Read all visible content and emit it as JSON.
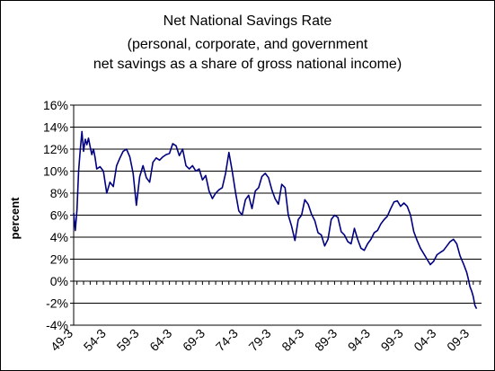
{
  "chart_data": {
    "type": "line",
    "title_lines": [
      "Net National Savings Rate",
      "(personal, corporate, and government",
      "net savings as a share of gross national income)"
    ],
    "ylabel": "percent",
    "xlabel": "",
    "ylim": [
      -4,
      16
    ],
    "yticks": [
      "-4%",
      "-2%",
      "0%",
      "2%",
      "4%",
      "6%",
      "8%",
      "10%",
      "12%",
      "14%",
      "16%"
    ],
    "ytick_values": [
      -4,
      -2,
      0,
      2,
      4,
      6,
      8,
      10,
      12,
      14,
      16
    ],
    "xticks": [
      "49-3",
      "54-3",
      "59-3",
      "64-3",
      "69-3",
      "74-3",
      "79-3",
      "84-3",
      "89-3",
      "94-3",
      "99-3",
      "04-3",
      "09-3"
    ],
    "xtick_years": [
      1949.5,
      1954.5,
      1959.5,
      1964.5,
      1969.5,
      1974.5,
      1979.5,
      1984.5,
      1989.5,
      1994.5,
      1999.5,
      2004.5,
      2009.5
    ],
    "xlim": [
      1949.5,
      2011.25
    ],
    "grid": true,
    "line_color": "#000080",
    "series": [
      {
        "name": "",
        "x": [
          1949.5,
          1949.75,
          1950.0,
          1950.25,
          1950.5,
          1950.75,
          1951.0,
          1951.25,
          1951.5,
          1951.75,
          1952.0,
          1952.25,
          1952.5,
          1952.75,
          1953.0,
          1953.5,
          1954.0,
          1954.5,
          1955.0,
          1955.5,
          1956.0,
          1956.5,
          1957.0,
          1957.5,
          1958.0,
          1958.5,
          1959.0,
          1959.5,
          1960.0,
          1960.5,
          1961.0,
          1961.5,
          1962.0,
          1962.5,
          1963.0,
          1963.5,
          1964.0,
          1964.5,
          1965.0,
          1965.5,
          1966.0,
          1966.5,
          1967.0,
          1967.5,
          1968.0,
          1968.5,
          1969.0,
          1969.5,
          1970.0,
          1970.5,
          1971.0,
          1971.5,
          1972.0,
          1972.5,
          1973.0,
          1973.5,
          1974.0,
          1974.5,
          1975.0,
          1975.5,
          1976.0,
          1976.5,
          1977.0,
          1977.5,
          1978.0,
          1978.5,
          1979.0,
          1979.5,
          1980.0,
          1980.5,
          1981.0,
          1981.5,
          1982.0,
          1982.5,
          1983.0,
          1983.5,
          1984.0,
          1984.5,
          1985.0,
          1985.5,
          1986.0,
          1986.5,
          1987.0,
          1987.5,
          1988.0,
          1988.5,
          1989.0,
          1989.5,
          1990.0,
          1990.5,
          1991.0,
          1991.5,
          1992.0,
          1992.5,
          1993.0,
          1993.5,
          1994.0,
          1994.5,
          1995.0,
          1995.5,
          1996.0,
          1996.5,
          1997.0,
          1997.5,
          1998.0,
          1998.5,
          1999.0,
          1999.5,
          2000.0,
          2000.5,
          2001.0,
          2001.5,
          2002.0,
          2002.5,
          2003.0,
          2003.5,
          2004.0,
          2004.5,
          2005.0,
          2005.5,
          2006.0,
          2006.5,
          2007.0,
          2007.5,
          2008.0,
          2008.5,
          2009.0,
          2009.25,
          2009.5,
          2009.75,
          2010.0,
          2010.25,
          2010.5
        ],
        "values": [
          6.2,
          4.6,
          6.5,
          10.0,
          12.0,
          13.6,
          11.8,
          12.9,
          12.4,
          13.0,
          12.2,
          11.5,
          12.0,
          11.2,
          10.2,
          10.4,
          10.0,
          8.0,
          9.0,
          8.6,
          10.5,
          11.2,
          11.8,
          12.0,
          11.3,
          9.8,
          6.9,
          9.5,
          10.5,
          9.4,
          9.0,
          10.8,
          11.2,
          11.0,
          11.3,
          11.5,
          11.6,
          12.5,
          12.3,
          11.4,
          12.0,
          10.5,
          10.2,
          10.5,
          10.0,
          10.2,
          9.2,
          9.6,
          8.2,
          7.5,
          8.0,
          8.3,
          8.5,
          9.8,
          11.7,
          10.0,
          8.1,
          6.4,
          6.0,
          7.4,
          7.8,
          6.6,
          8.2,
          8.5,
          9.5,
          9.8,
          9.4,
          8.3,
          7.5,
          7.0,
          8.8,
          8.5,
          6.0,
          5.0,
          3.7,
          5.6,
          6.0,
          7.4,
          7.0,
          6.1,
          5.5,
          4.4,
          4.2,
          3.2,
          3.8,
          5.6,
          6.0,
          5.8,
          4.5,
          4.2,
          3.6,
          3.4,
          4.8,
          3.8,
          3.0,
          2.8,
          3.4,
          3.8,
          4.4,
          4.6,
          5.2,
          5.6,
          5.9,
          6.6,
          7.2,
          7.3,
          6.8,
          7.1,
          6.8,
          6.0,
          4.5,
          3.7,
          3.0,
          2.5,
          2.0,
          1.5,
          1.8,
          2.4,
          2.6,
          2.8,
          3.2,
          3.6,
          3.8,
          3.4,
          2.3,
          1.6,
          0.8,
          0.2,
          -0.5,
          -0.9,
          -1.4,
          -2.2,
          -2.5
        ]
      }
    ]
  }
}
